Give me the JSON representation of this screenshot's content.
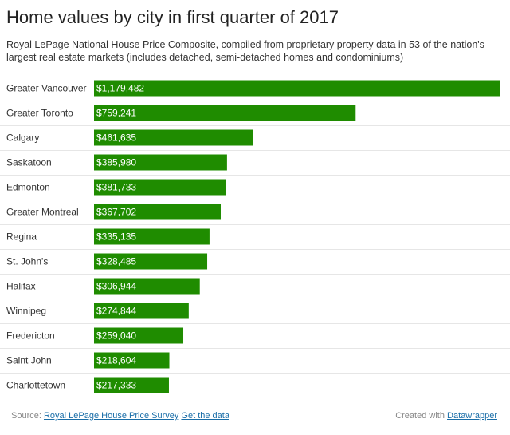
{
  "title": "Home values by city in first quarter of 2017",
  "subtitle": "Royal LePage National House Price Composite, compiled from proprietary property data in 53 of the nation's largest real estate markets (includes detached, semi-detached homes and condominiums)",
  "footer": {
    "source_prefix": "Source:",
    "source_link": "Royal LePage House Price Survey",
    "get_data": "Get the data",
    "created_with": "Created with",
    "tool_link": "Datawrapper"
  },
  "colors": {
    "bar": "#1f8c00",
    "bar_label": "#ffffff",
    "row_label": "#333333",
    "row_divider": "#e6e6e6"
  },
  "chart_data": {
    "type": "bar",
    "orientation": "horizontal",
    "title": "Home values by city in first quarter of 2017",
    "xlabel": "",
    "ylabel": "",
    "xlim": [
      0,
      1179482
    ],
    "categories": [
      "Greater Vancouver",
      "Greater Toronto",
      "Calgary",
      "Saskatoon",
      "Edmonton",
      "Greater Montreal",
      "Regina",
      "St. John's",
      "Halifax",
      "Winnipeg",
      "Fredericton",
      "Saint John",
      "Charlottetown"
    ],
    "values": [
      1179482,
      759241,
      461635,
      385980,
      381733,
      367702,
      335135,
      328485,
      306944,
      274844,
      259040,
      218604,
      217333
    ],
    "labels": [
      "$1,179,482",
      "$759,241",
      "$461,635",
      "$385,980",
      "$381,733",
      "$367,702",
      "$335,135",
      "$328,485",
      "$306,944",
      "$274,844",
      "$259,040",
      "$218,604",
      "$217,333"
    ],
    "grid": false,
    "legend": "none"
  }
}
